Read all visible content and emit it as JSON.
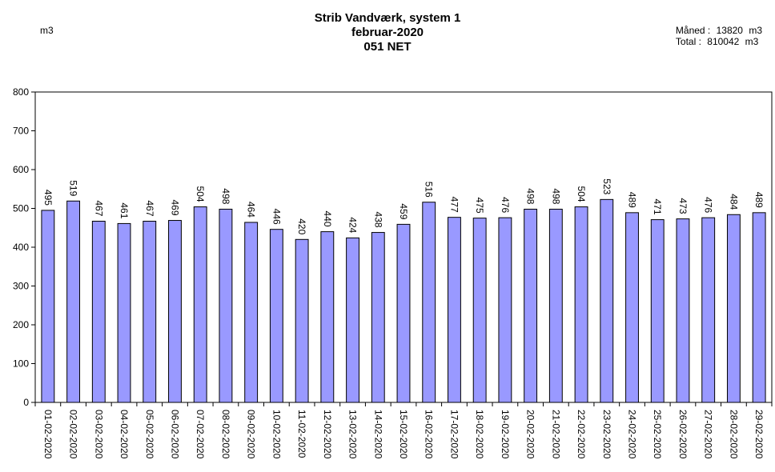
{
  "chart_data": {
    "type": "bar",
    "title_lines": [
      "Strib Vandværk, system 1",
      "februar-2020",
      "051 NET"
    ],
    "ylabel": "m3",
    "ylim": [
      0,
      800
    ],
    "yticks": [
      0,
      100,
      200,
      300,
      400,
      500,
      600,
      700,
      800
    ],
    "grid": false,
    "bar_color": "#9999ff",
    "categories": [
      "01-02-2020",
      "02-02-2020",
      "03-02-2020",
      "04-02-2020",
      "05-02-2020",
      "06-02-2020",
      "07-02-2020",
      "08-02-2020",
      "09-02-2020",
      "10-02-2020",
      "11-02-2020",
      "12-02-2020",
      "13-02-2020",
      "14-02-2020",
      "15-02-2020",
      "16-02-2020",
      "17-02-2020",
      "18-02-2020",
      "19-02-2020",
      "20-02-2020",
      "21-02-2020",
      "22-02-2020",
      "23-02-2020",
      "24-02-2020",
      "25-02-2020",
      "26-02-2020",
      "27-02-2020",
      "28-02-2020",
      "29-02-2020"
    ],
    "values": [
      495,
      519,
      467,
      461,
      467,
      469,
      504,
      498,
      464,
      446,
      420,
      440,
      424,
      438,
      459,
      516,
      477,
      475,
      476,
      498,
      498,
      504,
      523,
      489,
      471,
      473,
      476,
      484,
      489
    ]
  },
  "summary": {
    "month_label": "Måned :",
    "month_value": "13820",
    "month_unit": "m3",
    "total_label": "Total :",
    "total_value": "810042",
    "total_unit": "m3"
  }
}
